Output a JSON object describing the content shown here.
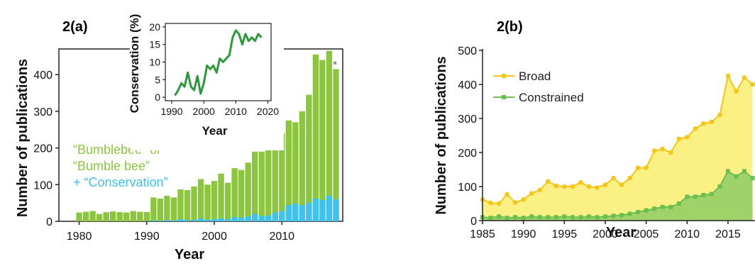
{
  "panels": {
    "a_label": "2(a)",
    "b_label": "2(b)"
  },
  "colors": {
    "bumblebee": "#8cc63f",
    "conservation": "#3fc2ef",
    "inset_line": "#2a9a3a",
    "broad": "#f5c518",
    "broad_fill": "#fbf083",
    "constrained": "#6bbf4e",
    "constrained_fill": "#9fd36a"
  },
  "chart_data": [
    {
      "type": "bar",
      "xlabel": "Year",
      "ylabel": "Number of publications",
      "xlim": [
        1977,
        2019
      ],
      "ylim": [
        0,
        470
      ],
      "xticks": [
        "1980",
        "1990",
        "2000",
        "2010"
      ],
      "yticks": [
        "0",
        "100",
        "200",
        "300",
        "400"
      ],
      "annotation": "*",
      "legend": [
        "“Bumblebee” or",
        "“Bumble bee”",
        "+ “Conservation”"
      ],
      "x": [
        1980,
        1981,
        1982,
        1983,
        1984,
        1985,
        1986,
        1987,
        1988,
        1989,
        1990,
        1991,
        1992,
        1993,
        1994,
        1995,
        1996,
        1997,
        1998,
        1999,
        2000,
        2001,
        2002,
        2003,
        2004,
        2005,
        2006,
        2007,
        2008,
        2009,
        2010,
        2011,
        2012,
        2013,
        2014,
        2015,
        2016,
        2017,
        2018
      ],
      "series": [
        {
          "name": "“Bumblebee” or “Bumble bee”",
          "values": [
            24,
            26,
            28,
            20,
            25,
            27,
            25,
            24,
            28,
            26,
            25,
            65,
            62,
            70,
            65,
            87,
            85,
            95,
            115,
            100,
            110,
            130,
            105,
            145,
            140,
            160,
            190,
            190,
            200,
            230,
            240,
            275,
            270,
            300,
            345,
            455,
            440,
            465,
            415
          ]
        },
        {
          "name": "+ “Conservation”",
          "values": [
            0,
            0,
            0,
            0,
            0,
            0,
            0,
            0,
            0,
            0,
            0,
            2,
            1,
            3,
            2,
            6,
            3,
            4,
            8,
            4,
            6,
            8,
            6,
            12,
            10,
            14,
            20,
            14,
            16,
            24,
            28,
            44,
            48,
            44,
            50,
            62,
            58,
            70,
            60
          ]
        }
      ]
    },
    {
      "type": "line",
      "xlabel": "Year",
      "ylabel": "Conservation (%)",
      "xlim": [
        1988,
        2021
      ],
      "ylim": [
        -1,
        21
      ],
      "xticks": [
        "1990",
        "2000",
        "2010",
        "2020"
      ],
      "yticks": [
        "0",
        "5",
        "10",
        "15",
        "20"
      ],
      "x": [
        1991,
        1992,
        1993,
        1994,
        1995,
        1996,
        1997,
        1998,
        1999,
        2000,
        2001,
        2002,
        2003,
        2004,
        2005,
        2006,
        2007,
        2008,
        2009,
        2010,
        2011,
        2012,
        2013,
        2014,
        2015,
        2016,
        2017,
        2018
      ],
      "values": [
        0.5,
        2,
        4,
        3,
        7,
        3,
        2,
        6,
        1,
        4,
        9,
        8,
        9,
        7,
        11,
        10,
        11,
        12,
        17,
        19,
        18,
        15,
        18,
        16,
        17,
        16,
        18,
        17
      ]
    },
    {
      "type": "area",
      "xlabel": "Year",
      "ylabel": "Number of publications",
      "xlim": [
        1985,
        2018.3
      ],
      "ylim": [
        0,
        500
      ],
      "xticks": [
        "1985",
        "1990",
        "1995",
        "2000",
        "2005",
        "2010",
        "2015"
      ],
      "yticks": [
        "0",
        "100",
        "200",
        "300",
        "400",
        "500"
      ],
      "x": [
        1985,
        1986,
        1987,
        1988,
        1989,
        1990,
        1991,
        1992,
        1993,
        1994,
        1995,
        1996,
        1997,
        1998,
        1999,
        2000,
        2001,
        2002,
        2003,
        2004,
        2005,
        2006,
        2007,
        2008,
        2009,
        2010,
        2011,
        2012,
        2013,
        2014,
        2015,
        2016,
        2017,
        2018
      ],
      "series": [
        {
          "name": "Broad",
          "values": [
            62,
            52,
            50,
            77,
            53,
            62,
            80,
            90,
            115,
            102,
            100,
            100,
            112,
            100,
            97,
            105,
            125,
            105,
            125,
            155,
            155,
            205,
            210,
            200,
            240,
            245,
            270,
            285,
            290,
            310,
            425,
            380,
            420,
            400
          ]
        },
        {
          "name": "Constrained",
          "values": [
            10,
            8,
            12,
            8,
            10,
            8,
            12,
            10,
            10,
            10,
            12,
            10,
            10,
            12,
            10,
            12,
            14,
            16,
            20,
            25,
            30,
            35,
            40,
            40,
            50,
            70,
            70,
            75,
            78,
            100,
            145,
            130,
            145,
            125
          ]
        }
      ]
    }
  ]
}
